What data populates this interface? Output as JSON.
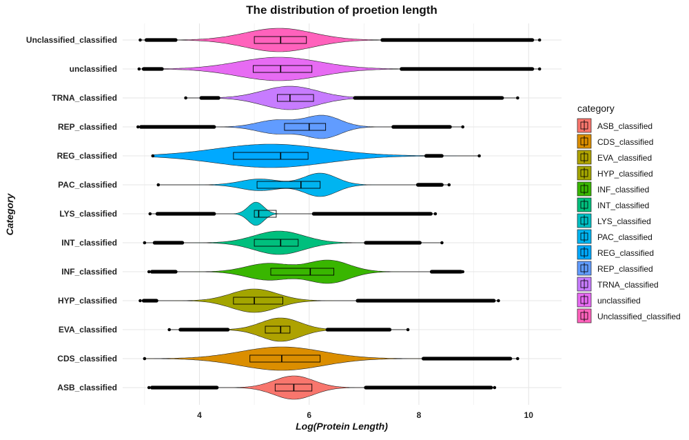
{
  "chart_data": {
    "type": "violin",
    "title": "The distribution of proetion length",
    "xlabel": "Log(Protein Length)",
    "ylabel": "Category",
    "xlim": [
      2.6,
      10.6
    ],
    "x_ticks": [
      4,
      6,
      8,
      10
    ],
    "grid": true,
    "legend": {
      "title": "category",
      "position": "right"
    },
    "categories": [
      {
        "name": "ASB_classified",
        "color": "#F8766D",
        "q1": 5.38,
        "median": 5.72,
        "q3": 6.05,
        "wl": 4.4,
        "wh": 7.05,
        "min": 3.08,
        "max": 9.38,
        "outLo": [
          3.1,
          4.35
        ],
        "outHi": [
          7.0,
          9.35
        ],
        "modes": [
          [
            5.72,
            0.36,
            1.0
          ]
        ]
      },
      {
        "name": "CDS_classified",
        "color": "#DB8E00",
        "q1": 4.92,
        "median": 5.5,
        "q3": 6.2,
        "wl": 3.7,
        "wh": 8.02,
        "min": 3.0,
        "max": 9.8,
        "outLo": [
          3.0,
          3.0
        ],
        "outHi": [
          8.05,
          9.7
        ],
        "modes": [
          [
            5.5,
            0.75,
            1.0
          ]
        ]
      },
      {
        "name": "EVA_classified",
        "color": "#AEA200",
        "q1": 5.2,
        "median": 5.48,
        "q3": 5.65,
        "wl": 4.55,
        "wh": 6.3,
        "min": 3.45,
        "max": 7.8,
        "outLo": [
          3.62,
          4.55
        ],
        "outHi": [
          6.3,
          7.5
        ],
        "modes": [
          [
            5.48,
            0.36,
            1.0
          ]
        ]
      },
      {
        "name": "HYP_classified",
        "color": "#A3A500",
        "q1": 4.62,
        "median": 5.0,
        "q3": 5.52,
        "wl": 3.65,
        "wh": 6.85,
        "min": 2.92,
        "max": 9.45,
        "outLo": [
          2.95,
          3.25
        ],
        "outHi": [
          6.85,
          9.4
        ],
        "modes": [
          [
            5.0,
            0.42,
            1.0
          ]
        ]
      },
      {
        "name": "INF_classified",
        "color": "#39B600",
        "q1": 5.3,
        "median": 6.02,
        "q3": 6.45,
        "wl": 4.35,
        "wh": 7.55,
        "min": 3.08,
        "max": 8.8,
        "outLo": [
          3.1,
          3.6
        ],
        "outHi": [
          8.2,
          8.8
        ],
        "modes": [
          [
            5.25,
            0.4,
            0.72
          ],
          [
            6.35,
            0.38,
            1.0
          ]
        ]
      },
      {
        "name": "INT_classified",
        "color": "#00BF7D",
        "q1": 5.0,
        "median": 5.48,
        "q3": 5.8,
        "wl": 4.1,
        "wh": 6.85,
        "min": 3.0,
        "max": 8.42,
        "outLo": [
          3.15,
          3.72
        ],
        "outHi": [
          7.0,
          8.05
        ],
        "modes": [
          [
            5.45,
            0.45,
            1.0
          ]
        ]
      },
      {
        "name": "LYS_classified",
        "color": "#00BFC4",
        "q1": 5.0,
        "median": 5.08,
        "q3": 5.4,
        "wl": 4.35,
        "wh": 6.0,
        "min": 3.1,
        "max": 8.3,
        "outLo": [
          3.2,
          4.3
        ],
        "outHi": [
          6.05,
          8.25
        ],
        "modes": [
          [
            5.03,
            0.14,
            1.0
          ]
        ]
      },
      {
        "name": "PAC_classified",
        "color": "#00B4F0",
        "q1": 5.05,
        "median": 5.85,
        "q3": 6.2,
        "wl": 3.25,
        "wh": 6.8,
        "min": 3.25,
        "max": 8.55,
        "outLo": [
          7.95,
          8.45
        ],
        "outHi": [
          7.95,
          8.45
        ],
        "modes": [
          [
            5.1,
            0.35,
            0.5
          ],
          [
            6.2,
            0.3,
            1.0
          ]
        ]
      },
      {
        "name": "REG_classified",
        "color": "#00A9FF",
        "q1": 4.62,
        "median": 5.48,
        "q3": 5.98,
        "wl": 3.15,
        "wh": 8.0,
        "min": 3.15,
        "max": 9.1,
        "outLo": [
          8.1,
          8.45
        ],
        "outHi": [
          8.75,
          8.75
        ],
        "modes": [
          [
            5.3,
            1.0,
            1.0
          ]
        ]
      },
      {
        "name": "REP_classified",
        "color": "#619CFF",
        "q1": 5.55,
        "median": 6.0,
        "q3": 6.3,
        "wl": 4.35,
        "wh": 7.4,
        "min": 2.88,
        "max": 8.8,
        "outLo": [
          2.9,
          4.3
        ],
        "outHi": [
          7.5,
          8.6
        ],
        "modes": [
          [
            5.4,
            0.35,
            0.6
          ],
          [
            6.25,
            0.32,
            1.0
          ]
        ]
      },
      {
        "name": "TRNA_classified",
        "color": "#C77CFF",
        "q1": 5.42,
        "median": 5.65,
        "q3": 6.08,
        "wl": 4.4,
        "wh": 6.75,
        "min": 3.75,
        "max": 9.8,
        "outLo": [
          4.0,
          4.38
        ],
        "outHi": [
          6.8,
          9.55
        ],
        "modes": [
          [
            5.65,
            0.5,
            1.0
          ]
        ]
      },
      {
        "name": "unclassified",
        "color": "#E76BF3",
        "q1": 4.98,
        "median": 5.48,
        "q3": 6.05,
        "wl": 3.65,
        "wh": 7.6,
        "min": 2.9,
        "max": 10.2,
        "outLo": [
          2.95,
          3.35
        ],
        "outHi": [
          7.65,
          10.1
        ],
        "modes": [
          [
            5.45,
            0.75,
            1.0
          ]
        ]
      },
      {
        "name": "Unclassified_classified",
        "color": "#FF62BC",
        "q1": 5.0,
        "median": 5.48,
        "q3": 5.95,
        "wl": 3.7,
        "wh": 7.25,
        "min": 2.92,
        "max": 10.2,
        "outLo": [
          3.0,
          3.6
        ],
        "outHi": [
          7.3,
          10.1
        ],
        "modes": [
          [
            5.45,
            0.62,
            1.0
          ]
        ]
      }
    ]
  }
}
